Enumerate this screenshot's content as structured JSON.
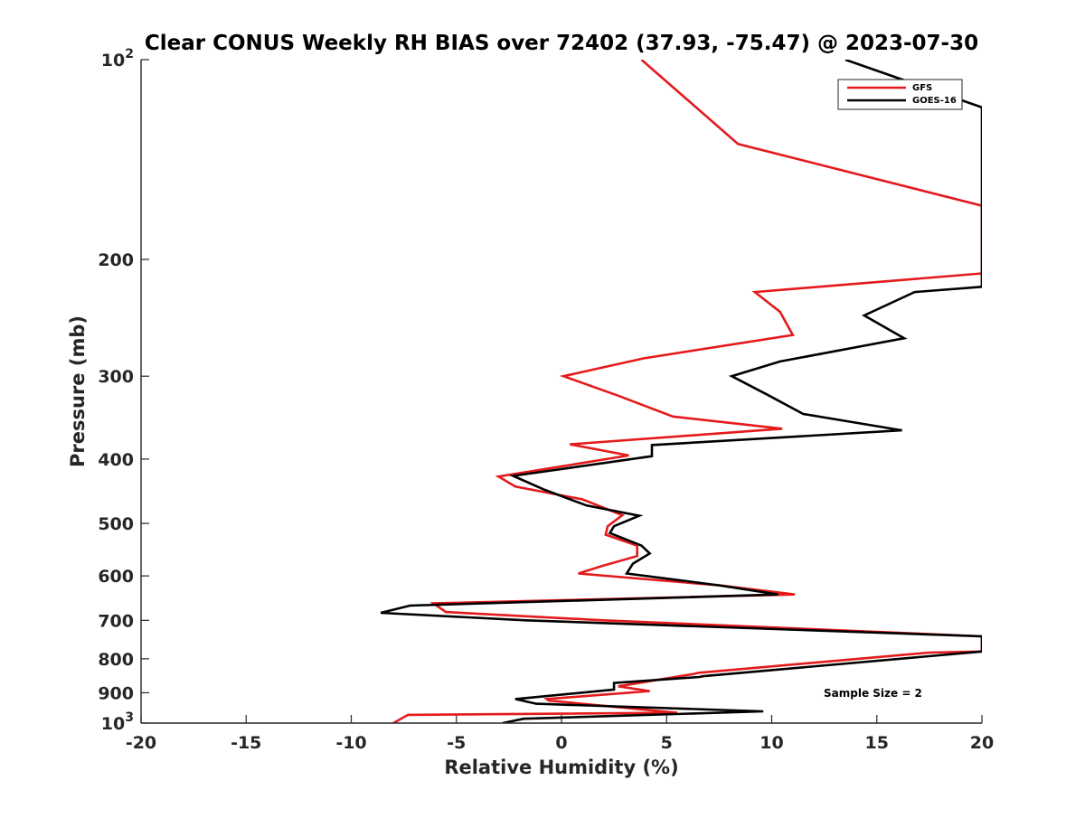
{
  "chart_data": {
    "type": "line",
    "title": "Clear CONUS Weekly RH BIAS over 72402 (37.93, -75.47) @ 2023-07-30",
    "xlabel": "Relative Humidity (%)",
    "ylabel": "Pressure (mb)",
    "xlim": [
      -20,
      20
    ],
    "ylim": [
      100,
      1000
    ],
    "y_scale": "log",
    "y_reversed": true,
    "grid": false,
    "legend_position": "top-right",
    "x_ticks": [
      {
        "value": -20,
        "label": "-20"
      },
      {
        "value": -15,
        "label": "-15"
      },
      {
        "value": -10,
        "label": "-10"
      },
      {
        "value": -5,
        "label": "-5"
      },
      {
        "value": 0,
        "label": "0"
      },
      {
        "value": 5,
        "label": "5"
      },
      {
        "value": 10,
        "label": "10"
      },
      {
        "value": 15,
        "label": "15"
      },
      {
        "value": 20,
        "label": "20"
      }
    ],
    "y_ticks": [
      {
        "value": 100,
        "base": "10",
        "exp": "2"
      },
      {
        "value": 200,
        "label": "200"
      },
      {
        "value": 300,
        "label": "300"
      },
      {
        "value": 400,
        "label": "400"
      },
      {
        "value": 500,
        "label": "500"
      },
      {
        "value": 600,
        "label": "600"
      },
      {
        "value": 700,
        "label": "700"
      },
      {
        "value": 800,
        "label": "800"
      },
      {
        "value": 900,
        "label": "900"
      },
      {
        "value": 1000,
        "base": "10",
        "exp": "3"
      }
    ],
    "series": [
      {
        "name": "GFS",
        "color": "#e41a1c",
        "points": [
          [
            3.8,
            100
          ],
          [
            6.0,
            115
          ],
          [
            8.4,
            134
          ],
          [
            20.0,
            166
          ],
          [
            20.0,
            220
          ],
          [
            20.0,
            210
          ],
          [
            9.2,
            224
          ],
          [
            10.4,
            240
          ],
          [
            11.0,
            260
          ],
          [
            3.9,
            282
          ],
          [
            0.1,
            300
          ],
          [
            2.7,
            321
          ],
          [
            5.3,
            345
          ],
          [
            10.5,
            360
          ],
          [
            0.4,
            380
          ],
          [
            3.2,
            395
          ],
          [
            -3.0,
            425
          ],
          [
            -2.2,
            440
          ],
          [
            1.0,
            460
          ],
          [
            2.9,
            486
          ],
          [
            2.2,
            505
          ],
          [
            2.1,
            520
          ],
          [
            3.6,
            540
          ],
          [
            3.6,
            560
          ],
          [
            1.9,
            580
          ],
          [
            0.8,
            595
          ],
          [
            7.5,
            620
          ],
          [
            11.1,
            640
          ],
          [
            -6.1,
            660
          ],
          [
            -5.5,
            680
          ],
          [
            2.0,
            700
          ],
          [
            20.0,
            740
          ],
          [
            20.0,
            780
          ],
          [
            17.5,
            783
          ],
          [
            6.5,
            840
          ],
          [
            6.3,
            843
          ],
          [
            2.7,
            880
          ],
          [
            4.2,
            895
          ],
          [
            -0.7,
            920
          ],
          [
            -0.6,
            925
          ],
          [
            5.5,
            965
          ],
          [
            -7.3,
            972
          ],
          [
            -8.0,
            1000
          ]
        ]
      },
      {
        "name": "GOES-16",
        "color": "#000000",
        "points": [
          [
            13.5,
            100
          ],
          [
            20.0,
            118
          ],
          [
            20.0,
            220
          ],
          [
            16.8,
            224
          ],
          [
            14.4,
            243
          ],
          [
            16.3,
            263
          ],
          [
            10.4,
            285
          ],
          [
            8.1,
            300
          ],
          [
            9.8,
            320
          ],
          [
            11.5,
            342
          ],
          [
            16.2,
            362
          ],
          [
            4.3,
            381
          ],
          [
            4.3,
            396
          ],
          [
            -2.3,
            424
          ],
          [
            -0.8,
            445
          ],
          [
            1.2,
            470
          ],
          [
            3.7,
            487
          ],
          [
            2.5,
            505
          ],
          [
            2.3,
            517
          ],
          [
            3.8,
            540
          ],
          [
            4.2,
            555
          ],
          [
            3.4,
            575
          ],
          [
            3.1,
            595
          ],
          [
            7.5,
            620
          ],
          [
            10.3,
            640
          ],
          [
            -7.2,
            665
          ],
          [
            -8.6,
            682
          ],
          [
            -1.7,
            700
          ],
          [
            20.0,
            740
          ],
          [
            20.0,
            780
          ],
          [
            6.7,
            850
          ],
          [
            6.6,
            852
          ],
          [
            2.5,
            870
          ],
          [
            2.5,
            890
          ],
          [
            -2.2,
            920
          ],
          [
            -1.2,
            935
          ],
          [
            9.6,
            960
          ],
          [
            -1.8,
            985
          ],
          [
            -2.8,
            1000
          ]
        ]
      }
    ],
    "annotation": "Sample Size = 2"
  }
}
